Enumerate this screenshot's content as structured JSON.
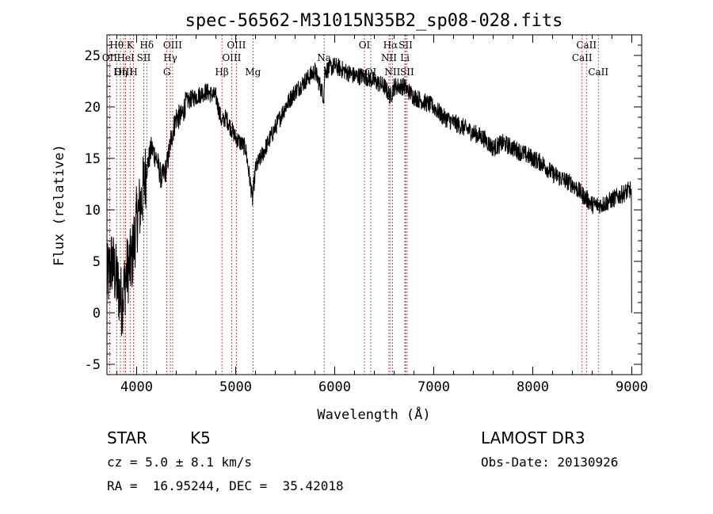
{
  "chart_data": {
    "type": "line",
    "title": "spec-56562-M31015N35B2_sp08-028.fits",
    "xlabel": "Wavelength (Å)",
    "ylabel": "Flux (relative)",
    "xlim": [
      3700,
      9100
    ],
    "ylim": [
      -6,
      27
    ],
    "xticks": [
      4000,
      5000,
      6000,
      7000,
      8000,
      9000
    ],
    "yticks": [
      -5,
      0,
      5,
      10,
      15,
      20,
      25
    ],
    "grid": false,
    "spectrum_knots": [
      [
        3700,
        3
      ],
      [
        3750,
        5
      ],
      [
        3800,
        3
      ],
      [
        3850,
        1
      ],
      [
        3900,
        4
      ],
      [
        3950,
        5
      ],
      [
        4000,
        9
      ],
      [
        4050,
        11
      ],
      [
        4100,
        14
      ],
      [
        4150,
        16
      ],
      [
        4200,
        15
      ],
      [
        4250,
        13
      ],
      [
        4300,
        14
      ],
      [
        4350,
        17
      ],
      [
        4400,
        19
      ],
      [
        4450,
        19
      ],
      [
        4500,
        20.5
      ],
      [
        4600,
        21
      ],
      [
        4700,
        21.5
      ],
      [
        4800,
        21
      ],
      [
        4860,
        18.5
      ],
      [
        4900,
        19
      ],
      [
        5000,
        17
      ],
      [
        5100,
        16
      ],
      [
        5170,
        11
      ],
      [
        5200,
        14
      ],
      [
        5300,
        16
      ],
      [
        5400,
        18
      ],
      [
        5500,
        20
      ],
      [
        5600,
        21.5
      ],
      [
        5700,
        22.5
      ],
      [
        5800,
        23.5
      ],
      [
        5890,
        21
      ],
      [
        5900,
        23.5
      ],
      [
        6000,
        24
      ],
      [
        6100,
        23.5
      ],
      [
        6200,
        23
      ],
      [
        6300,
        23
      ],
      [
        6400,
        22.5
      ],
      [
        6500,
        22
      ],
      [
        6563,
        21
      ],
      [
        6600,
        22
      ],
      [
        6700,
        22
      ],
      [
        6800,
        21
      ],
      [
        6900,
        20.5
      ],
      [
        7000,
        20
      ],
      [
        7100,
        19
      ],
      [
        7200,
        18.5
      ],
      [
        7300,
        18
      ],
      [
        7400,
        17.5
      ],
      [
        7500,
        17
      ],
      [
        7600,
        16
      ],
      [
        7700,
        16.5
      ],
      [
        7800,
        16
      ],
      [
        7900,
        15.5
      ],
      [
        8000,
        15
      ],
      [
        8100,
        14.5
      ],
      [
        8200,
        13.5
      ],
      [
        8300,
        13
      ],
      [
        8400,
        12.5
      ],
      [
        8500,
        11.5
      ],
      [
        8600,
        10.5
      ],
      [
        8700,
        10.5
      ],
      [
        8800,
        11
      ],
      [
        8900,
        11.5
      ],
      [
        8990,
        12
      ],
      [
        9000,
        0
      ]
    ],
    "lines": [
      {
        "label": "Hθ",
        "wave": 3798,
        "row": 0
      },
      {
        "label": "OII",
        "wave": 3727,
        "row": 1
      },
      {
        "label": "Hη",
        "wave": 3836,
        "row": 2
      },
      {
        "label": "OIII",
        "wave": 3869,
        "row": 2
      },
      {
        "label": "K",
        "wave": 3934,
        "row": 0
      },
      {
        "label": "HeI",
        "wave": 3889,
        "row": 1
      },
      {
        "label": "H",
        "wave": 3969,
        "row": 2
      },
      {
        "label": "SII",
        "wave": 4072,
        "row": 1
      },
      {
        "label": "Hδ",
        "wave": 4102,
        "row": 0
      },
      {
        "label": "OIII",
        "wave": 4363,
        "row": 0
      },
      {
        "label": "Hγ",
        "wave": 4340,
        "row": 1
      },
      {
        "label": "G",
        "wave": 4305,
        "row": 2
      },
      {
        "label": "Hβ",
        "wave": 4861,
        "row": 2
      },
      {
        "label": "OIII",
        "wave": 5007,
        "row": 0
      },
      {
        "label": "OIII",
        "wave": 4959,
        "row": 1
      },
      {
        "label": "Mg",
        "wave": 5175,
        "row": 2
      },
      {
        "label": "Na",
        "wave": 5893,
        "row": 1
      },
      {
        "label": "OI",
        "wave": 6300,
        "row": 0
      },
      {
        "label": "OI",
        "wave": 6364,
        "row": 2
      },
      {
        "label": "Hα",
        "wave": 6563,
        "row": 0
      },
      {
        "label": "NII",
        "wave": 6548,
        "row": 1
      },
      {
        "label": "NII",
        "wave": 6583,
        "row": 2
      },
      {
        "label": "SII",
        "wave": 6716,
        "row": 0
      },
      {
        "label": "Li",
        "wave": 6708,
        "row": 1
      },
      {
        "label": "SII",
        "wave": 6731,
        "row": 2
      },
      {
        "label": "CaII",
        "wave": 8542,
        "row": 0
      },
      {
        "label": "CaII",
        "wave": 8498,
        "row": 1
      },
      {
        "label": "CaII",
        "wave": 8662,
        "row": 2
      }
    ]
  },
  "info": {
    "object_class": "STAR",
    "subclass": "K5",
    "survey": "LAMOST DR3",
    "cz": "cz = 5.0 ± 8.1 km/s",
    "obs_date": "Obs-Date: 20130926",
    "coords": "RA =  16.95244, DEC =  35.42018"
  },
  "colors": {
    "spectrum": "#000000",
    "line_marker": "#b22222",
    "axes": "#000000"
  }
}
